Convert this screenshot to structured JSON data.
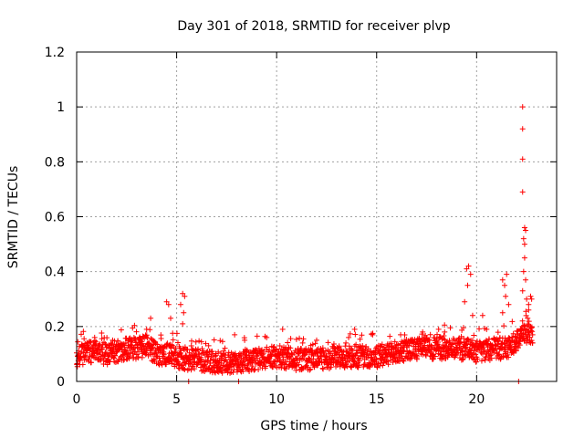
{
  "chart_data": {
    "type": "scatter",
    "title": "Day 301 of 2018, SRMTID for receiver plvp",
    "xlabel": "GPS time / hours",
    "ylabel": "SRMTID / TECUs",
    "xlim": [
      0,
      24
    ],
    "ylim": [
      0,
      1.2
    ],
    "xticks": [
      0,
      5,
      10,
      15,
      20
    ],
    "yticks": [
      0,
      0.2,
      0.4,
      0.6,
      0.8,
      1,
      1.2
    ],
    "xtick_labels": [
      "0",
      "5",
      "10",
      "15",
      "20"
    ],
    "ytick_labels": [
      "0",
      "0.2",
      "0.4",
      "0.6",
      "0.8",
      "1",
      "1.2"
    ],
    "grid": true,
    "marker": "+",
    "color": "#ff0000",
    "series": [
      {
        "name": "SRMTID",
        "baseline": [
          [
            0.0,
            0.09
          ],
          [
            0.5,
            0.1
          ],
          [
            1.0,
            0.11
          ],
          [
            1.5,
            0.1
          ],
          [
            2.0,
            0.11
          ],
          [
            2.5,
            0.12
          ],
          [
            3.0,
            0.12
          ],
          [
            3.5,
            0.13
          ],
          [
            4.0,
            0.1
          ],
          [
            4.5,
            0.1
          ],
          [
            5.0,
            0.09
          ],
          [
            5.5,
            0.08
          ],
          [
            6.0,
            0.08
          ],
          [
            7.0,
            0.07
          ],
          [
            8.0,
            0.07
          ],
          [
            9.0,
            0.08
          ],
          [
            10.0,
            0.09
          ],
          [
            11.0,
            0.08
          ],
          [
            12.0,
            0.08
          ],
          [
            13.0,
            0.09
          ],
          [
            14.0,
            0.09
          ],
          [
            15.0,
            0.09
          ],
          [
            16.0,
            0.11
          ],
          [
            17.0,
            0.12
          ],
          [
            18.0,
            0.12
          ],
          [
            19.0,
            0.12
          ],
          [
            20.0,
            0.11
          ],
          [
            21.0,
            0.12
          ],
          [
            21.5,
            0.12
          ],
          [
            22.0,
            0.15
          ],
          [
            22.5,
            0.18
          ],
          [
            22.8,
            0.18
          ]
        ],
        "peaks": [
          [
            0.3,
            0.13
          ],
          [
            0.9,
            0.16
          ],
          [
            1.8,
            0.15
          ],
          [
            2.6,
            0.15
          ],
          [
            3.5,
            0.19
          ],
          [
            3.7,
            0.23
          ],
          [
            4.5,
            0.29
          ],
          [
            4.6,
            0.28
          ],
          [
            4.7,
            0.23
          ],
          [
            5.3,
            0.32
          ],
          [
            5.4,
            0.31
          ],
          [
            5.2,
            0.28
          ],
          [
            5.35,
            0.25
          ],
          [
            5.3,
            0.21
          ],
          [
            6.6,
            0.13
          ],
          [
            7.9,
            0.17
          ],
          [
            8.4,
            0.15
          ],
          [
            9.5,
            0.16
          ],
          [
            10.3,
            0.19
          ],
          [
            11.3,
            0.14
          ],
          [
            12.0,
            0.15
          ],
          [
            13.6,
            0.16
          ],
          [
            13.9,
            0.19
          ],
          [
            14.8,
            0.17
          ],
          [
            16.2,
            0.17
          ],
          [
            17.3,
            0.18
          ],
          [
            18.1,
            0.19
          ],
          [
            18.4,
            0.18
          ],
          [
            19.5,
            0.41
          ],
          [
            19.6,
            0.42
          ],
          [
            19.55,
            0.35
          ],
          [
            19.7,
            0.39
          ],
          [
            19.4,
            0.29
          ],
          [
            19.8,
            0.24
          ],
          [
            20.3,
            0.24
          ],
          [
            20.5,
            0.19
          ],
          [
            21.3,
            0.37
          ],
          [
            21.4,
            0.35
          ],
          [
            21.5,
            0.39
          ],
          [
            21.45,
            0.31
          ],
          [
            21.3,
            0.25
          ],
          [
            21.6,
            0.28
          ],
          [
            22.0,
            0.14
          ],
          [
            22.2,
            0.19
          ],
          [
            22.3,
            1.0
          ],
          [
            22.3,
            0.92
          ],
          [
            22.3,
            0.81
          ],
          [
            22.3,
            0.69
          ],
          [
            22.4,
            0.56
          ],
          [
            22.45,
            0.55
          ],
          [
            22.35,
            0.52
          ],
          [
            22.4,
            0.5
          ],
          [
            22.4,
            0.45
          ],
          [
            22.35,
            0.4
          ],
          [
            22.45,
            0.37
          ],
          [
            22.3,
            0.33
          ],
          [
            22.5,
            0.3
          ],
          [
            22.6,
            0.28
          ],
          [
            22.7,
            0.31
          ],
          [
            22.75,
            0.3
          ],
          [
            22.6,
            0.26
          ],
          [
            22.55,
            0.23
          ],
          [
            22.7,
            0.2
          ],
          [
            22.8,
            0.17
          ],
          [
            22.8,
            0.14
          ]
        ],
        "zeros": [
          5.6,
          8.1,
          22.1
        ]
      }
    ]
  }
}
